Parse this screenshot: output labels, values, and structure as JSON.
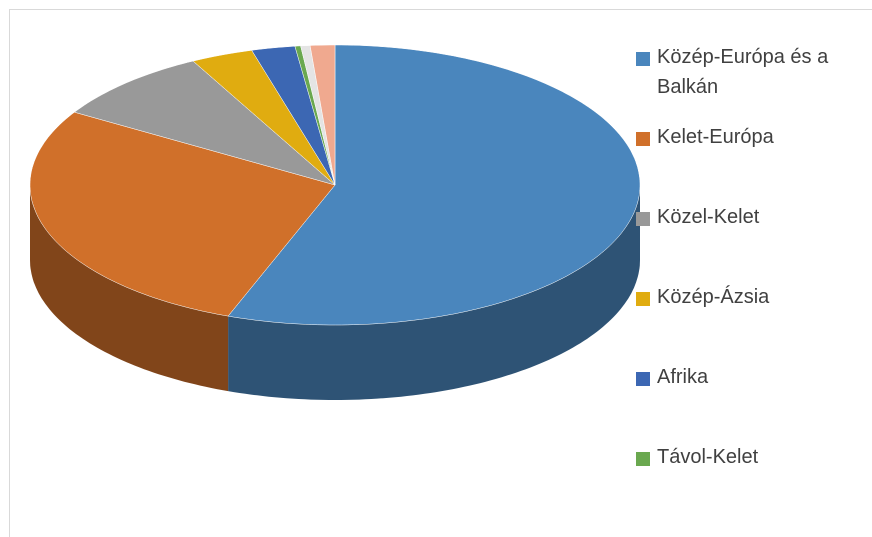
{
  "chart_data": {
    "type": "pie3d",
    "categories": [
      "Közép-Európa és a Balkán",
      "Kelet-Európa",
      "Közel-Kelet",
      "Közép-Ázsia",
      "Afrika",
      "Távol-Kelet",
      null,
      null
    ],
    "values": [
      55.7,
      28,
      8.6,
      3.3,
      2.3,
      0.3,
      0.5,
      1.3
    ],
    "colors": [
      "#4a86bd",
      "#d0702a",
      "#999999",
      "#e0ac10",
      "#3c67b3",
      "#6aa84f",
      "#e4e4e4",
      "#f0a98f"
    ],
    "legend": "right"
  }
}
